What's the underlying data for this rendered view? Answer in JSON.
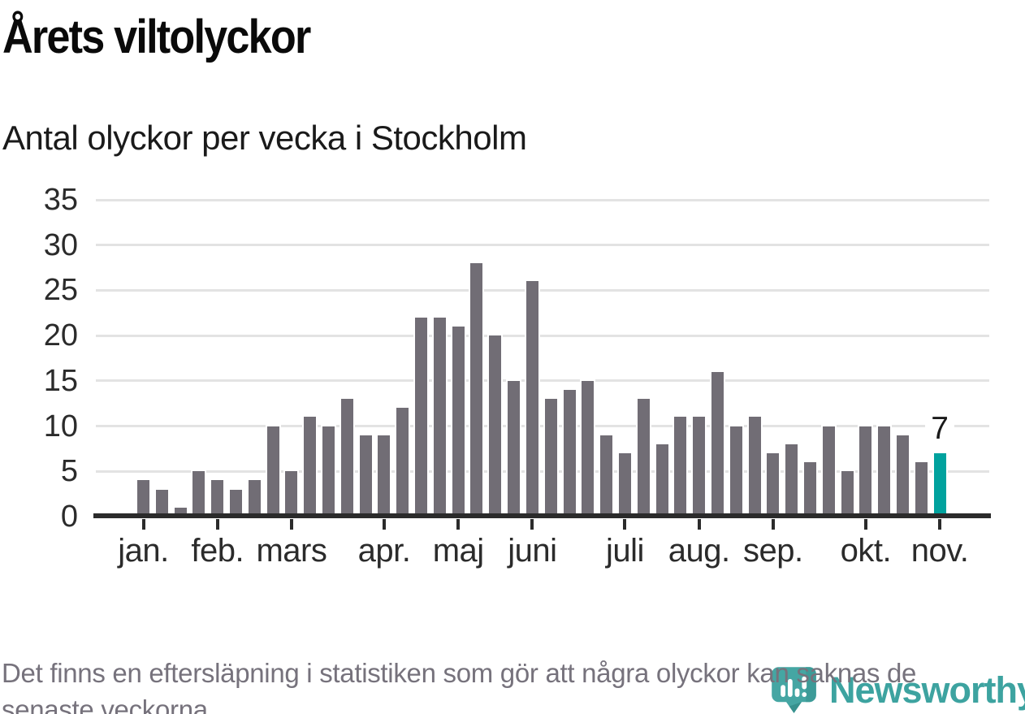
{
  "header": {
    "title": "Årets viltolyckor",
    "subtitle": "Antal olyckor per vecka i Stockholm"
  },
  "chart_data": {
    "type": "bar",
    "title": "Årets viltolyckor",
    "subtitle": "Antal olyckor per vecka i Stockholm",
    "ylabel": "",
    "xlabel": "",
    "ylim": [
      0,
      35
    ],
    "y_ticks": [
      0,
      5,
      10,
      15,
      20,
      25,
      30,
      35
    ],
    "grid": true,
    "bar_color": "#716d75",
    "highlight_color": "#00a29e",
    "months": [
      {
        "label": "jan.",
        "values": [
          4,
          3,
          1,
          5
        ]
      },
      {
        "label": "feb.",
        "values": [
          4,
          3,
          4,
          10
        ]
      },
      {
        "label": "mars",
        "values": [
          5,
          11,
          10,
          13,
          9
        ]
      },
      {
        "label": "apr.",
        "values": [
          9,
          12,
          22,
          22
        ]
      },
      {
        "label": "maj",
        "values": [
          21,
          28,
          20,
          15
        ]
      },
      {
        "label": "juni",
        "values": [
          26,
          13,
          14,
          15,
          9
        ]
      },
      {
        "label": "juli",
        "values": [
          7,
          13,
          8,
          11
        ]
      },
      {
        "label": "aug.",
        "values": [
          11,
          16,
          10,
          11
        ]
      },
      {
        "label": "sep.",
        "values": [
          7,
          8,
          6,
          10,
          5
        ]
      },
      {
        "label": "okt.",
        "values": [
          10,
          10,
          9,
          6
        ]
      },
      {
        "label": "nov.",
        "values": [
          7
        ],
        "highlight": true
      }
    ],
    "highlight_label": "7"
  },
  "footer": {
    "note_line1": "Det finns en eftersläpning i statistiken som gör att några olyckor kan saknas de",
    "note_line2": "senaste veckorna."
  },
  "logo": {
    "text": "Newsworthy",
    "color": "#3da3a0"
  }
}
